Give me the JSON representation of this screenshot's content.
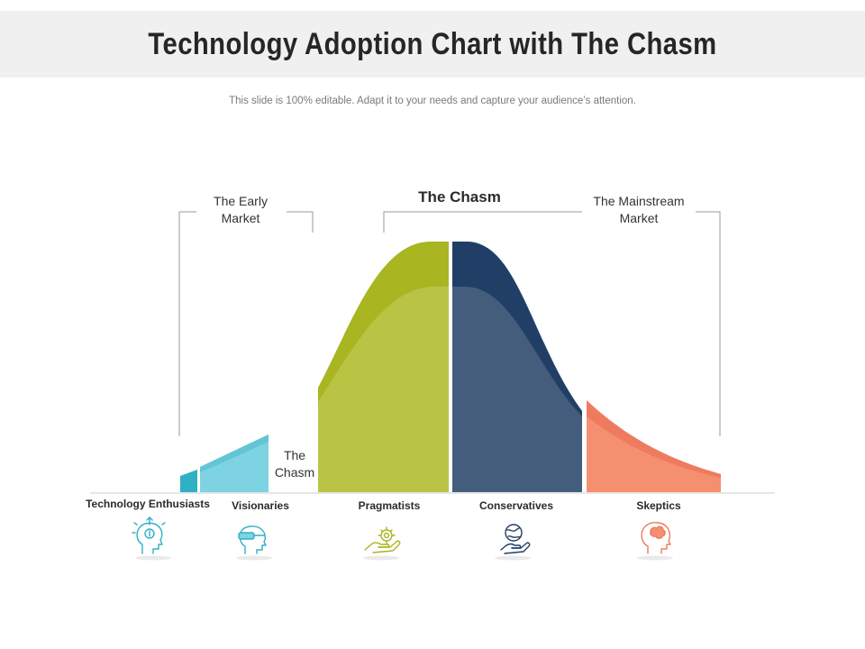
{
  "header": {
    "title": "Technology Adoption Chart with The Chasm",
    "subtitle": "This slide is 100% editable. Adapt it to your needs and capture your audience’s attention."
  },
  "groups": {
    "early_market_line1": "The Early",
    "early_market_line2": "Market",
    "chasm_top": "The Chasm",
    "mainstream_line1": "The Mainstream",
    "mainstream_line2": "Market",
    "chasm_gap_line1": "The",
    "chasm_gap_line2": "Chasm"
  },
  "segments": [
    {
      "label": "Technology Enthusiasts",
      "color": "#2fb0c5",
      "icon": "idea-head-icon"
    },
    {
      "label": "Visionaries",
      "color": "#7dd3e2",
      "icon": "vr-headset-head-icon"
    },
    {
      "label": "Pragmatists",
      "color": "#a9b521",
      "icon": "hand-gear-icon"
    },
    {
      "label": "Conservatives",
      "color": "#213f66",
      "icon": "hand-globe-icon"
    },
    {
      "label": "Skeptics",
      "color": "#ef7b5e",
      "icon": "brain-head-icon"
    }
  ],
  "colors": {
    "enthusiasts_dark": "#2fb0c5",
    "visionaries": "#7dd3e2",
    "pragmatists_dark": "#a9b521",
    "pragmatists_light": "#b9c444",
    "conservatives_dark": "#213f66",
    "conservatives_light": "#445d7c",
    "skeptics_dark": "#ef7b5e",
    "skeptics_light": "#f4906f"
  }
}
